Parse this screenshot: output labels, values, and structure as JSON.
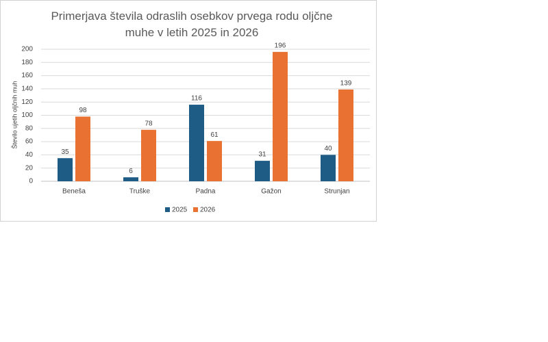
{
  "chart_data": {
    "type": "bar",
    "title": "Primerjava števila odraslih osebkov prvega rodu oljčne muhe v letih 2025 in 2026",
    "y_label": "Število ujetih oljčnih muh",
    "categories": [
      "Beneša",
      "Truške",
      "Padna",
      "Gažon",
      "Strunjan"
    ],
    "series": [
      {
        "name": "2025",
        "color": "#1e5c86",
        "values": [
          35,
          6,
          116,
          31,
          40
        ]
      },
      {
        "name": "2026",
        "color": "#e97132",
        "values": [
          98,
          78,
          61,
          196,
          139
        ]
      }
    ],
    "ylim": [
      0,
      200
    ],
    "yticks": [
      0,
      20,
      40,
      60,
      80,
      100,
      120,
      140,
      160,
      180,
      200
    ],
    "grid": true,
    "legend": "bottom"
  }
}
